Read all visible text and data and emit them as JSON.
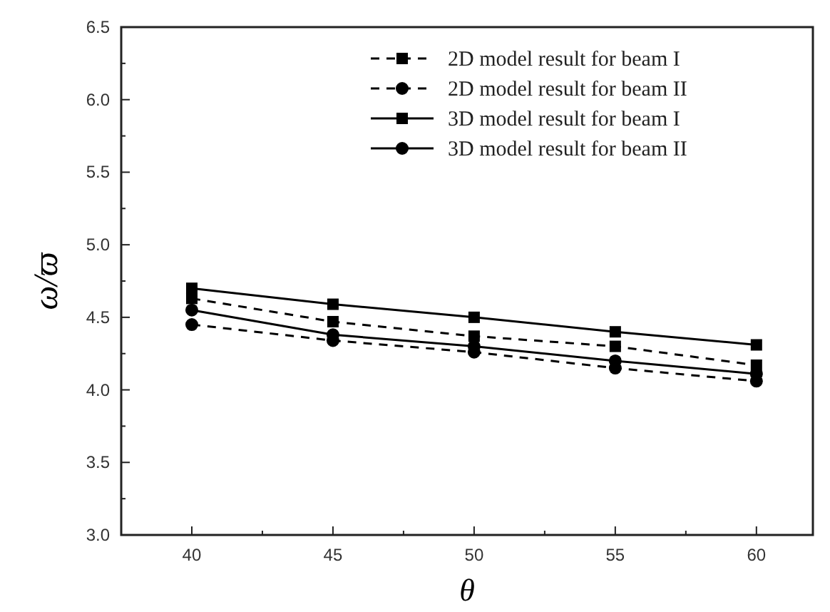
{
  "chart_data": {
    "type": "line",
    "xlabel": "θ",
    "ylabel": "ω/ϖ",
    "x": [
      40,
      45,
      50,
      55,
      60
    ],
    "xlim": [
      37.5,
      62
    ],
    "xticks": [
      40,
      {
        "value": 42.5,
        "label": null
      },
      45,
      {
        "value": 47.5,
        "label": null
      },
      50,
      {
        "value": 52.5,
        "label": null
      },
      55,
      {
        "value": 57.5,
        "label": null
      },
      60
    ],
    "ylim": [
      3.0,
      6.5
    ],
    "yticks": [
      {
        "value": 3,
        "label": "3.0"
      },
      {
        "value": 3.25,
        "label": null
      },
      3.5,
      {
        "value": 3.75,
        "label": null
      },
      {
        "value": 4,
        "label": "4.0"
      },
      {
        "value": 4.25,
        "label": null
      },
      4.5,
      {
        "value": 4.75,
        "label": null
      },
      {
        "value": 5,
        "label": "5.0"
      },
      {
        "value": 5.25,
        "label": null
      },
      5.5,
      {
        "value": 5.75,
        "label": null
      },
      {
        "value": 6,
        "label": "6.0"
      },
      {
        "value": 6.25,
        "label": null
      },
      6.5
    ],
    "legend": "top right",
    "grid": false,
    "series": [
      {
        "name": "2D model result for beam I",
        "color": "#000000",
        "marker": "square",
        "line_style": "dashed",
        "values": [
          4.63,
          4.47,
          4.37,
          4.3,
          4.17
        ]
      },
      {
        "name": "2D model result for beam II",
        "color": "#000000",
        "marker": "circle",
        "line_style": "dashed",
        "values": [
          4.45,
          4.34,
          4.26,
          4.15,
          4.06
        ]
      },
      {
        "name": "3D model result for beam I",
        "color": "#000000",
        "marker": "square",
        "line_style": "solid",
        "values": [
          4.7,
          4.59,
          4.5,
          4.4,
          4.31
        ]
      },
      {
        "name": "3D model result for beam II",
        "color": "#000000",
        "marker": "circle",
        "line_style": "solid",
        "values": [
          4.55,
          4.38,
          4.3,
          4.2,
          4.11
        ]
      }
    ]
  }
}
